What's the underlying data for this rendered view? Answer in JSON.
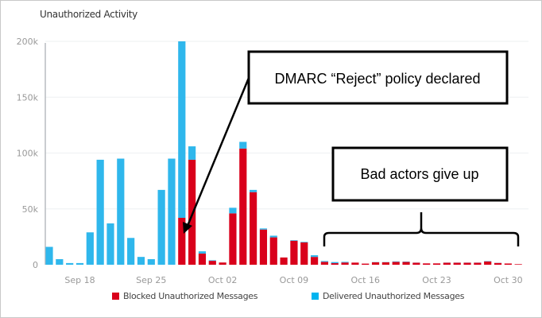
{
  "chart_data": {
    "type": "bar",
    "stacked": true,
    "title": "Unauthorized Activity",
    "xlabel": "",
    "ylabel": "",
    "ylim": [
      0,
      200000
    ],
    "yticks": [
      "0",
      "50k",
      "100k",
      "150k",
      "200k"
    ],
    "xtick_labels": [
      "Sep 18",
      "Sep 25",
      "Oct 02",
      "Oct 09",
      "Oct 16",
      "Oct 23",
      "Oct 30"
    ],
    "grid": true,
    "legend_position": "bottom",
    "categories": [
      "Sep 15",
      "Sep 16",
      "Sep 17",
      "Sep 18",
      "Sep 19",
      "Sep 20",
      "Sep 21",
      "Sep 22",
      "Sep 23",
      "Sep 24",
      "Sep 25",
      "Sep 26",
      "Sep 27",
      "Sep 28",
      "Sep 29",
      "Sep 30",
      "Oct 01",
      "Oct 02",
      "Oct 03",
      "Oct 04",
      "Oct 05",
      "Oct 06",
      "Oct 07",
      "Oct 08",
      "Oct 09",
      "Oct 10",
      "Oct 11",
      "Oct 12",
      "Oct 13",
      "Oct 14",
      "Oct 15",
      "Oct 16",
      "Oct 17",
      "Oct 18",
      "Oct 19",
      "Oct 20",
      "Oct 21",
      "Oct 22",
      "Oct 23",
      "Oct 24",
      "Oct 25",
      "Oct 26",
      "Oct 27",
      "Oct 28",
      "Oct 29",
      "Oct 30",
      "Oct 31"
    ],
    "series": [
      {
        "name": "Blocked Unauthorized Messages",
        "color": "#d9001b",
        "values": [
          0,
          0,
          0,
          0,
          0,
          0,
          0,
          0,
          0,
          0,
          0,
          0,
          0,
          42000,
          94000,
          10000,
          3500,
          2000,
          46000,
          104000,
          65000,
          31500,
          24500,
          6500,
          21500,
          20000,
          7000,
          2600,
          1400,
          2000,
          1900,
          1000,
          2200,
          2200,
          2600,
          2500,
          1800,
          1200,
          1200,
          1800,
          1800,
          1800,
          1800,
          3000,
          1600,
          1100,
          500
        ]
      },
      {
        "name": "Delivered Unauthorized Messages",
        "color": "#2fb7ec",
        "values": [
          16000,
          5000,
          1500,
          1500,
          29000,
          94000,
          37000,
          95000,
          24000,
          7000,
          5000,
          67000,
          95000,
          158000,
          12000,
          2000,
          500,
          0,
          5000,
          6000,
          2000,
          1000,
          1500,
          0,
          500,
          500,
          1500,
          700,
          1000,
          600,
          0,
          0,
          200,
          200,
          400,
          300,
          100,
          0,
          0,
          100,
          100,
          100,
          100,
          300,
          100,
          0,
          0
        ]
      }
    ]
  },
  "annotations": {
    "policy_callout": "DMARC “Reject” policy declared",
    "give_up_callout": "Bad actors give up"
  }
}
